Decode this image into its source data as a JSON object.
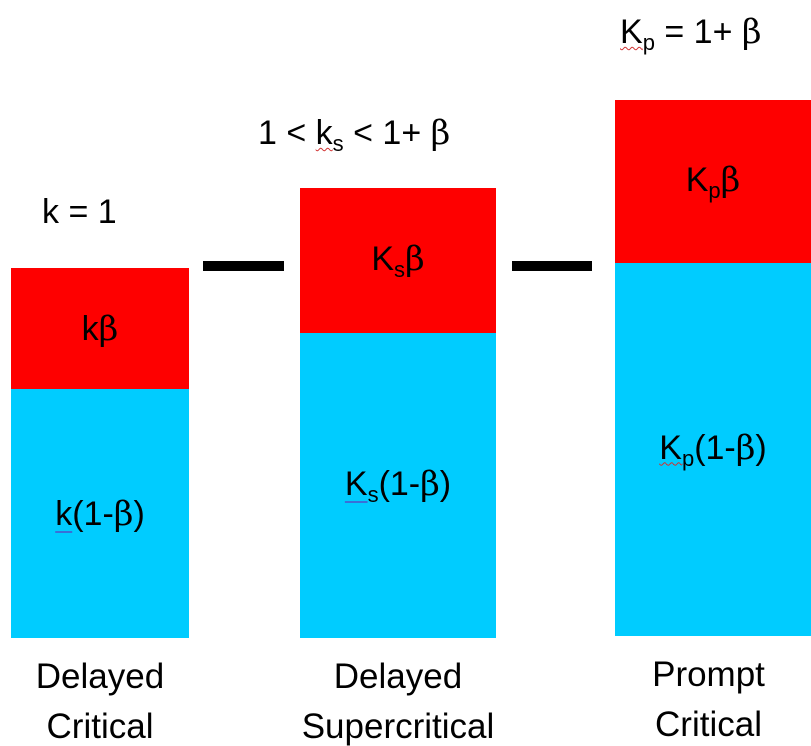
{
  "diagram": {
    "colors": {
      "delayed_neutron_fraction": "#fe0000",
      "prompt_neutron_fraction": "#00ccff",
      "connector": "#000000"
    },
    "columns": [
      {
        "condition": {
          "lhs": "k",
          "rel": " = ",
          "rhs": "1"
        },
        "top_label": {
          "coef": "k",
          "greek": "β"
        },
        "bottom_label": {
          "coef": "k",
          "rest": "(1-",
          "greek": "β",
          "close": ")"
        },
        "caption": {
          "line1": "Delayed",
          "line2": "Critical"
        }
      },
      {
        "condition": {
          "pre": "1 < ",
          "base": "k",
          "sub": "s",
          "post": " < 1+ ",
          "greek": "β"
        },
        "top_label": {
          "base": "K",
          "sub": "s",
          "greek": "β"
        },
        "bottom_label": {
          "base": "K",
          "sub": "s",
          "rest": "(1-",
          "greek": "β",
          "close": ")"
        },
        "caption": {
          "line1": "Delayed",
          "line2": "Supercritical"
        }
      },
      {
        "condition": {
          "base": "K",
          "sub": "p",
          "post": " = 1+ ",
          "greek": "β"
        },
        "top_label": {
          "base": "K",
          "sub": "p",
          "greek": "β"
        },
        "bottom_label": {
          "base": "K",
          "sub": "p",
          "rest": "(1-",
          "greek": "β",
          "close": ")"
        },
        "caption": {
          "line1": "Prompt",
          "line2": "Critical"
        }
      }
    ]
  }
}
